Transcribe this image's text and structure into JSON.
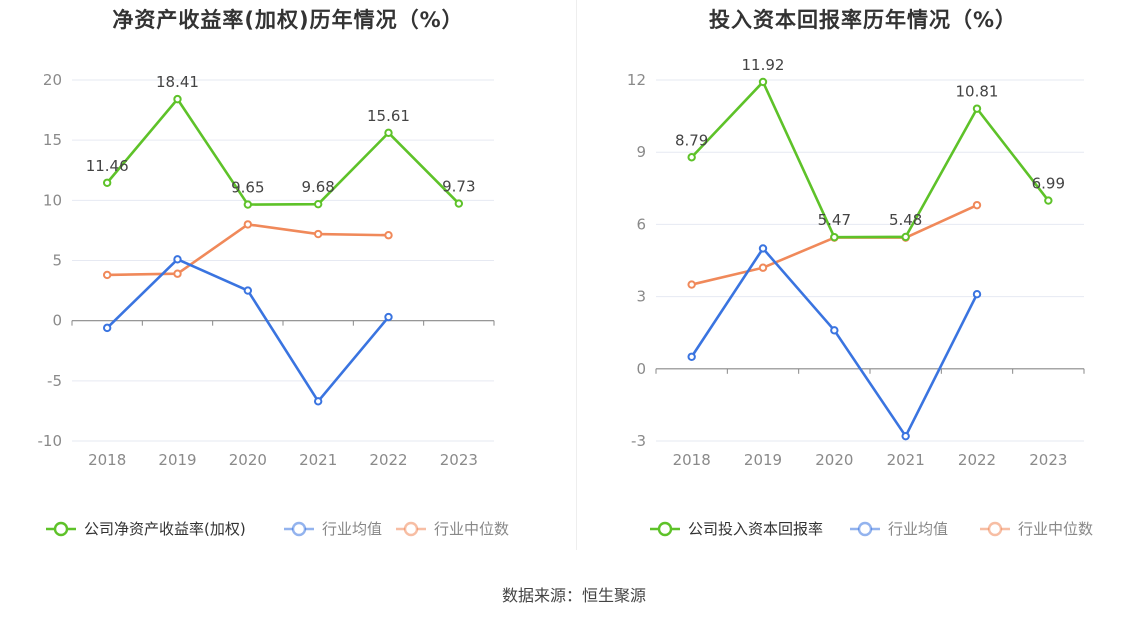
{
  "source": "数据来源：恒生聚源",
  "chart_data": [
    {
      "type": "line",
      "title": "净资产收益率(加权)历年情况（%）",
      "categories": [
        "2018",
        "2019",
        "2020",
        "2021",
        "2022",
        "2023"
      ],
      "ylim": [
        -10,
        20
      ],
      "yticks": [
        20,
        15,
        10,
        5,
        0,
        -5,
        -10
      ],
      "ytick_labels": [
        "20",
        "15",
        "10",
        "5",
        "0",
        "-5",
        "-10"
      ],
      "grid": true,
      "legend_position": "bottom",
      "series": [
        {
          "name": "公司净资产收益率(加权)",
          "color": "#5ec229",
          "labels": true,
          "values": [
            11.46,
            18.41,
            9.65,
            9.68,
            15.61,
            9.73
          ],
          "value_labels": [
            "11.46",
            "18.41",
            "9.65",
            "9.68",
            "15.61",
            "9.73"
          ]
        },
        {
          "name": "行业均值",
          "color": "#3a74e0",
          "labels": false,
          "values": [
            -0.6,
            5.1,
            2.5,
            -6.7,
            0.3,
            null
          ]
        },
        {
          "name": "行业中位数",
          "color": "#f0895a",
          "labels": false,
          "values": [
            3.8,
            3.9,
            8.0,
            7.2,
            7.1,
            null
          ]
        }
      ]
    },
    {
      "type": "line",
      "title": "投入资本回报率历年情况（%）",
      "categories": [
        "2018",
        "2019",
        "2020",
        "2021",
        "2022",
        "2023"
      ],
      "ylim": [
        -3,
        12
      ],
      "yticks": [
        12,
        9,
        6,
        3,
        0,
        -3
      ],
      "ytick_labels": [
        "12",
        "9",
        "6",
        "3",
        "0",
        "-3"
      ],
      "grid": true,
      "legend_position": "bottom",
      "series": [
        {
          "name": "公司投入资本回报率",
          "color": "#5ec229",
          "labels": true,
          "values": [
            8.79,
            11.92,
            5.47,
            5.48,
            10.81,
            6.99
          ],
          "value_labels": [
            "8.79",
            "11.92",
            "5.47",
            "5.48",
            "10.81",
            "6.99"
          ]
        },
        {
          "name": "行业均值",
          "color": "#3a74e0",
          "labels": false,
          "values": [
            0.5,
            5.0,
            1.6,
            -2.8,
            3.1,
            null
          ]
        },
        {
          "name": "行业中位数",
          "color": "#f0895a",
          "labels": false,
          "values": [
            3.5,
            4.2,
            5.45,
            5.45,
            6.8,
            null
          ]
        }
      ]
    }
  ]
}
